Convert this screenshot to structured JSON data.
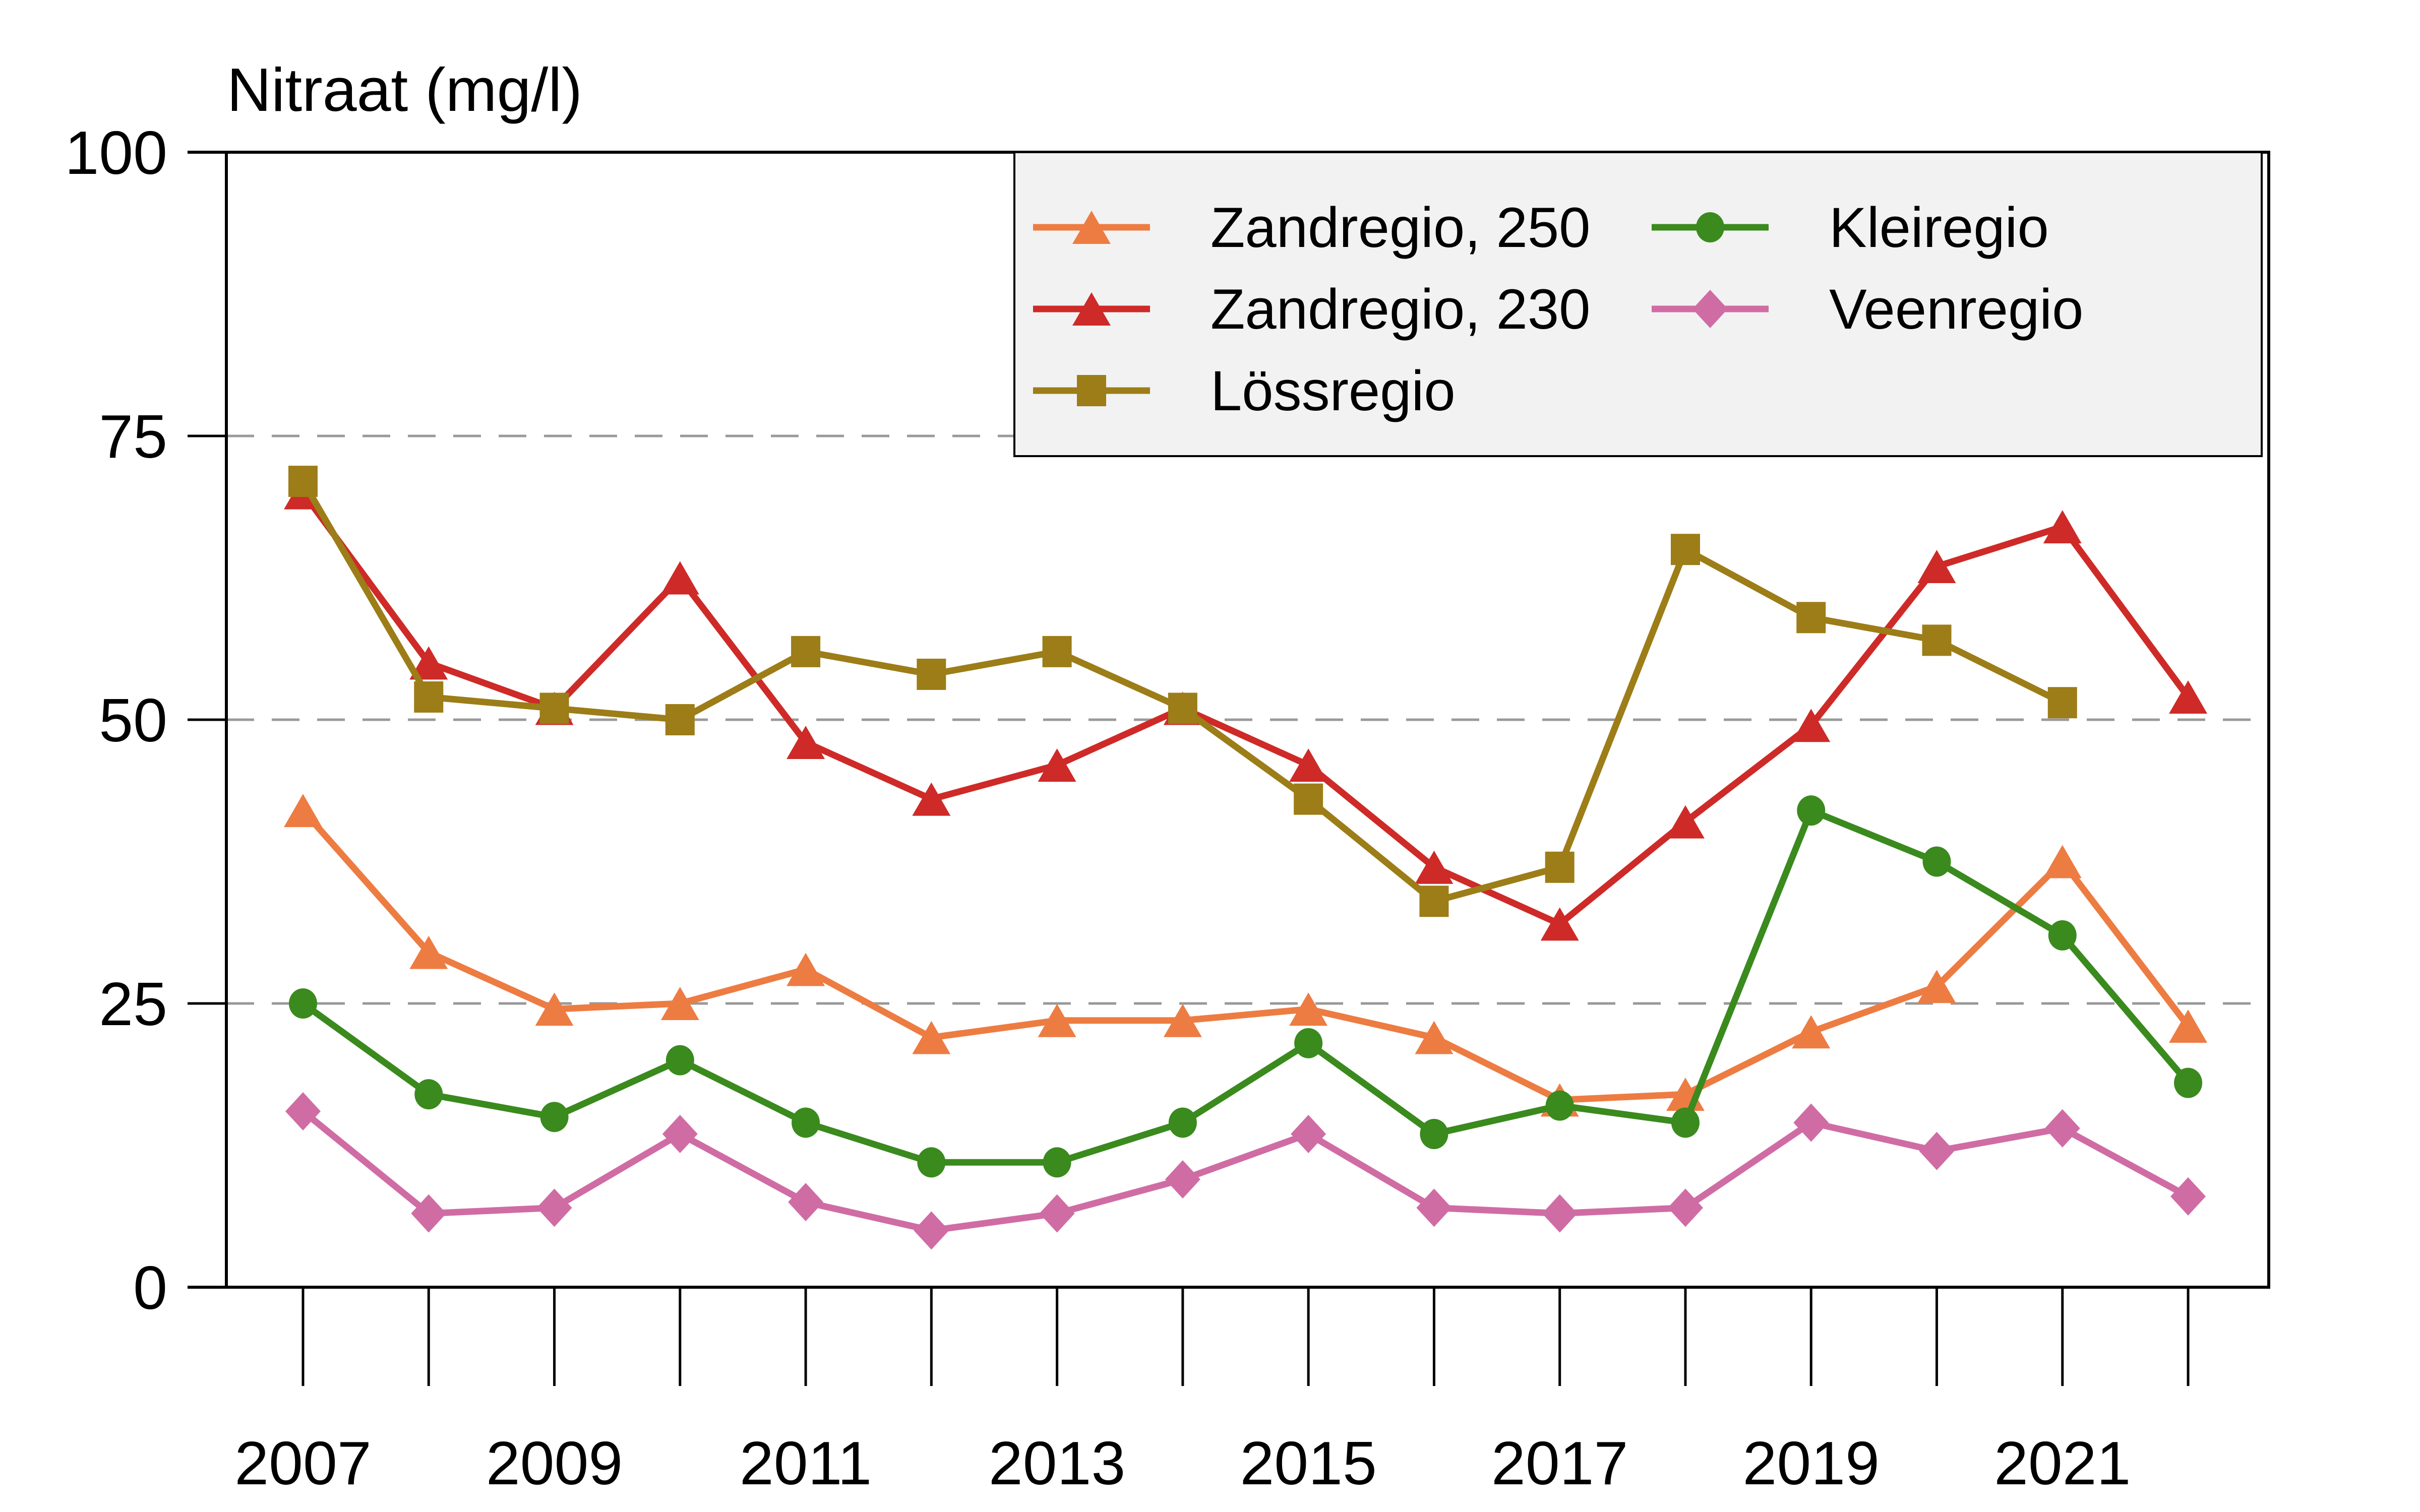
{
  "title": "Nitraat (mg/l)",
  "chart_data": {
    "type": "line",
    "title": "Nitraat (mg/l)",
    "x": [
      2007,
      2008,
      2009,
      2010,
      2011,
      2012,
      2013,
      2014,
      2015,
      2016,
      2017,
      2018,
      2019,
      2020,
      2021,
      2022
    ],
    "x_label_years": [
      2007,
      2009,
      2011,
      2013,
      2015,
      2017,
      2019,
      2021
    ],
    "xlabel": "",
    "ylabel": "Nitraat (mg/l)",
    "ylim": [
      0,
      100
    ],
    "yticks": [
      0,
      25,
      50,
      75,
      100
    ],
    "grid": {
      "horizontal_dashed_at": [
        25,
        50,
        75
      ]
    },
    "legend_position": "top-right inside plot",
    "series": [
      {
        "name": "Zandregio, 250",
        "marker": "triangle",
        "color": "#ED7C42",
        "values": [
          42,
          29.5,
          24.5,
          25,
          28,
          22,
          23.5,
          23.5,
          24.5,
          22,
          16.5,
          17,
          22.5,
          26.5,
          37.5,
          23
        ]
      },
      {
        "name": "Zandregio, 230",
        "marker": "triangle",
        "color": "#CE2A28",
        "values": [
          70,
          55,
          51,
          62.5,
          48,
          43,
          46,
          51,
          46,
          37,
          32,
          41,
          49.5,
          63.5,
          67,
          52
        ]
      },
      {
        "name": "Lössregio",
        "marker": "square",
        "color": "#9C7D17",
        "values": [
          71,
          52,
          51,
          50,
          56,
          54,
          56,
          51,
          43,
          34,
          37,
          65,
          59,
          57,
          51.5,
          null
        ]
      },
      {
        "name": "Kleiregio",
        "marker": "circle",
        "color": "#3A8A1E",
        "values": [
          25,
          17,
          15,
          20,
          14.5,
          11,
          11,
          14.5,
          21.5,
          13.5,
          16,
          14.5,
          42,
          37.5,
          31,
          18
        ]
      },
      {
        "name": "Veenregio",
        "marker": "diamond",
        "color": "#D06CA4",
        "values": [
          15.5,
          6.5,
          7,
          13.5,
          7.5,
          5,
          6.5,
          9.5,
          13.5,
          7,
          6.5,
          7,
          14.5,
          12,
          14,
          8
        ]
      }
    ],
    "legend_columns": [
      [
        0,
        1,
        2
      ],
      [
        3,
        4
      ]
    ]
  },
  "colors": {
    "background": "#FFFFFF",
    "axis": "#000000",
    "grid": "#999999",
    "legend_fill": "#F2F2F2",
    "legend_border": "#000000"
  }
}
